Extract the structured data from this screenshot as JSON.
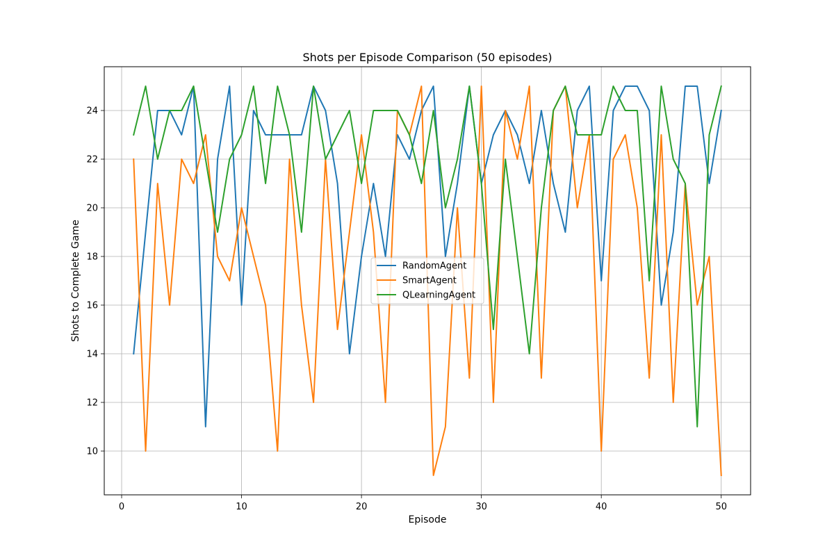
{
  "chart_data": {
    "type": "line",
    "title": "Shots per Episode Comparison (50 episodes)",
    "xlabel": "Episode",
    "ylabel": "Shots to Complete Game",
    "xlim": [
      -1.45,
      52.45
    ],
    "ylim": [
      8.2,
      25.8
    ],
    "xticks": [
      0,
      10,
      20,
      30,
      40,
      50
    ],
    "yticks": [
      10,
      12,
      14,
      16,
      18,
      20,
      22,
      24
    ],
    "grid": true,
    "legend_position": "center",
    "series": [
      {
        "name": "RandomAgent",
        "color": "#1f77b4",
        "values": [
          14,
          19,
          24,
          24,
          23,
          25,
          11,
          22,
          25,
          16,
          24,
          23,
          23,
          23,
          23,
          25,
          24,
          21,
          14,
          18,
          21,
          18,
          23,
          22,
          24,
          25,
          18,
          21,
          25,
          21,
          23,
          24,
          23,
          21,
          24,
          21,
          19,
          24,
          25,
          17,
          24,
          25,
          25,
          24,
          16,
          19,
          25,
          25,
          21,
          24
        ]
      },
      {
        "name": "SmartAgent",
        "color": "#ff7f0e",
        "values": [
          22,
          10,
          21,
          16,
          22,
          21,
          23,
          18,
          17,
          20,
          18,
          16,
          10,
          22,
          16,
          12,
          22,
          15,
          19,
          23,
          19,
          12,
          24,
          23,
          25,
          9,
          11,
          20,
          13,
          25,
          12,
          24,
          22,
          25,
          13,
          24,
          25,
          20,
          23,
          10,
          22,
          23,
          20,
          13,
          23,
          12,
          21,
          16,
          18,
          9
        ]
      },
      {
        "name": "QLearningAgent",
        "color": "#2ca02c",
        "values": [
          23,
          25,
          22,
          24,
          24,
          25,
          22,
          19,
          22,
          23,
          25,
          21,
          25,
          23,
          19,
          25,
          22,
          23,
          24,
          21,
          24,
          24,
          24,
          23,
          21,
          24,
          20,
          22,
          25,
          21,
          15,
          22,
          18,
          14,
          20,
          24,
          25,
          23,
          23,
          23,
          25,
          24,
          24,
          17,
          25,
          22,
          21,
          11,
          23,
          25
        ]
      }
    ]
  }
}
